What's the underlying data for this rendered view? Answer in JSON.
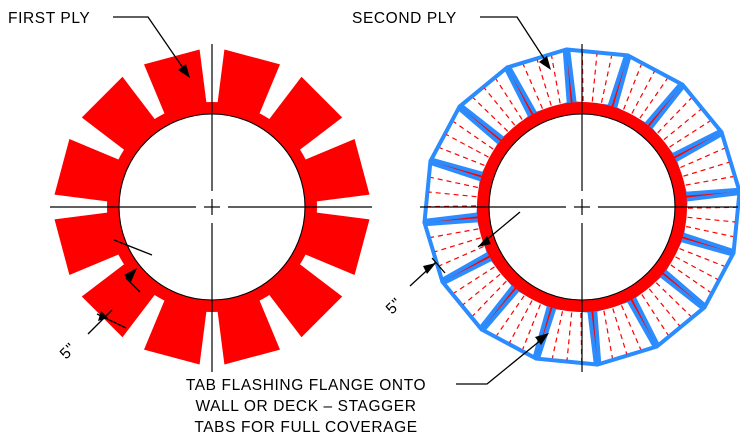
{
  "labels": {
    "first_ply": "FIRST PLY",
    "second_ply": "SECOND PLY",
    "dim_left": "5\"",
    "dim_right": "5\"",
    "note_lines": [
      "TAB FLASHING FLANGE ONTO",
      "WALL OR DECK – STAGGER",
      "TABS FOR FULL COVERAGE"
    ]
  },
  "colors": {
    "first_ply": "#ff0000",
    "second_ply_outline": "#2b8cff",
    "second_ply_fill": "#ffffff",
    "cut_lines": "#ff0000",
    "linework": "#000000"
  },
  "plies": {
    "first_ply_tab_count": 12,
    "second_ply_tab_count": 16
  }
}
